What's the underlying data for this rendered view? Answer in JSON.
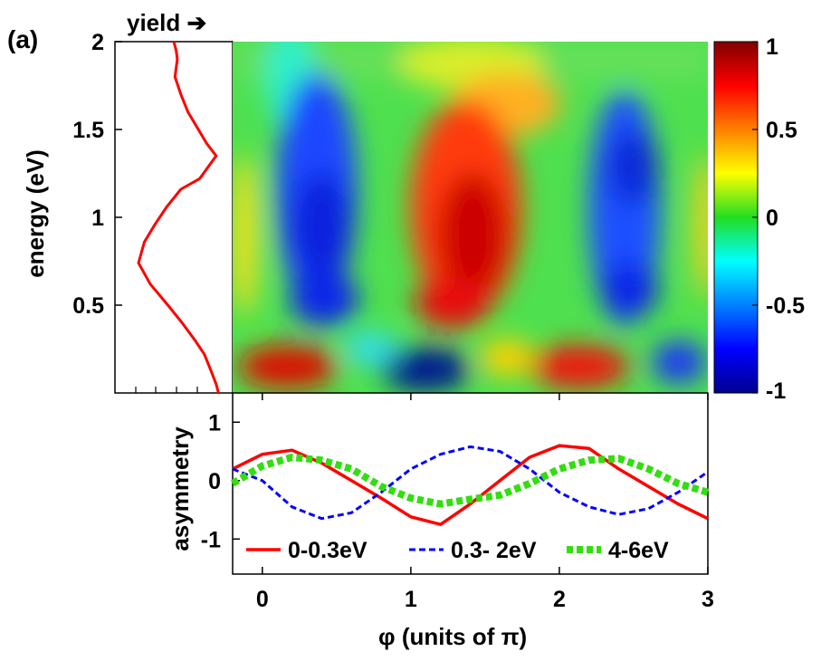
{
  "panel_label": "(a)",
  "yield_label": "yield",
  "chart_data": [
    {
      "id": "yield_profile",
      "type": "line",
      "xlabel": "yield",
      "ylabel": "energy (eV)",
      "ylim": [
        0,
        2
      ],
      "yticks": [
        "0.5",
        "1",
        "1.5",
        "2"
      ],
      "series": [
        {
          "color": "#ff0000",
          "x": [
            0.5,
            0.52,
            0.53,
            0.51,
            0.56,
            0.62,
            0.78,
            0.86,
            0.72,
            0.56,
            0.44,
            0.34,
            0.25,
            0.2,
            0.3,
            0.45,
            0.57,
            0.68,
            0.76,
            0.82,
            0.86,
            0.88
          ],
          "y": [
            2.0,
            1.95,
            1.9,
            1.8,
            1.7,
            1.6,
            1.42,
            1.35,
            1.22,
            1.16,
            1.06,
            0.96,
            0.86,
            0.74,
            0.62,
            0.5,
            0.4,
            0.3,
            0.22,
            0.12,
            0.05,
            0.0
          ]
        }
      ]
    },
    {
      "id": "heatmap",
      "type": "heatmap",
      "xlim": [
        -0.2,
        3
      ],
      "ylim": [
        0,
        2
      ],
      "colorbar": {
        "range": [
          -1,
          1
        ],
        "ticks": [
          "1",
          "0.5",
          "0",
          "-0.5",
          "-1"
        ]
      }
    },
    {
      "id": "asymmetry",
      "type": "line",
      "xlabel": "φ (units of π)",
      "ylabel": "asymmetry",
      "xlim": [
        -0.2,
        3
      ],
      "ylim": [
        -1.6,
        1.5
      ],
      "xticks": [
        "0",
        "1",
        "2",
        "3"
      ],
      "yticks": [
        "1",
        "0",
        "-1"
      ],
      "series": [
        {
          "name": "0-0.3eV",
          "color": "#ff0000",
          "dash": "solid",
          "x": [
            -0.2,
            0.0,
            0.2,
            0.4,
            0.6,
            0.8,
            1.0,
            1.2,
            1.4,
            1.6,
            1.8,
            2.0,
            2.2,
            2.4,
            2.6,
            2.8,
            3.0
          ],
          "y": [
            0.2,
            0.45,
            0.52,
            0.3,
            0.0,
            -0.3,
            -0.62,
            -0.75,
            -0.4,
            0.0,
            0.4,
            0.6,
            0.55,
            0.2,
            -0.1,
            -0.4,
            -0.65
          ]
        },
        {
          "name": "0.3- 2eV",
          "color": "#0000ff",
          "dash": "dashed",
          "x": [
            -0.2,
            0.0,
            0.2,
            0.4,
            0.6,
            0.8,
            1.0,
            1.2,
            1.4,
            1.6,
            1.8,
            2.0,
            2.2,
            2.4,
            2.6,
            2.8,
            3.0
          ],
          "y": [
            0.2,
            0.0,
            -0.45,
            -0.65,
            -0.55,
            -0.2,
            0.2,
            0.45,
            0.58,
            0.5,
            0.2,
            -0.2,
            -0.45,
            -0.58,
            -0.48,
            -0.2,
            0.15
          ]
        },
        {
          "name": "4-6eV",
          "color": "#33dd11",
          "dash": "dotted",
          "x": [
            -0.2,
            0.0,
            0.2,
            0.4,
            0.6,
            0.8,
            1.0,
            1.2,
            1.4,
            1.6,
            1.8,
            2.0,
            2.2,
            2.4,
            2.6,
            2.8,
            3.0
          ],
          "y": [
            -0.05,
            0.25,
            0.4,
            0.35,
            0.2,
            -0.1,
            -0.3,
            -0.4,
            -0.32,
            -0.25,
            -0.05,
            0.2,
            0.35,
            0.38,
            0.2,
            -0.05,
            -0.2
          ]
        }
      ]
    }
  ]
}
